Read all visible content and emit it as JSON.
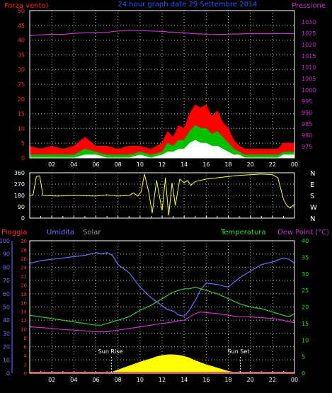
{
  "header": {
    "left_label": "Forza vento)",
    "center_title": "24 hour graph date 29 Settembre 2014",
    "right_label": "Pressione"
  },
  "lower_header": {
    "rain_label": "Pioggia",
    "humidity_label": "Umidita",
    "solar_label": "Solar",
    "temperature_label": "Temperatura",
    "dewpoint_label": "Dew Point (°C)"
  },
  "annotations": {
    "sun_rise": "Sun Rise",
    "sun_set": "Sun Set"
  },
  "colors": {
    "wind_gust": "#ff0000",
    "wind_speed": "#00c000",
    "wind_avg": "#ffffff",
    "pressure": "#cc33cc",
    "direction": "#ffff33",
    "humidity": "#7070ff",
    "temperature": "#33cc33",
    "dewpoint": "#cc33cc",
    "solar": "#ffff00",
    "rain": "#ff2020",
    "axis": "#ffffff",
    "grid": "#bbbbbb"
  },
  "chart_data": [
    {
      "type": "area",
      "id": "wind-pressure",
      "x": [
        0,
        1,
        2,
        3,
        4,
        5,
        6,
        7,
        8,
        9,
        10,
        11,
        12,
        12.5,
        13,
        13.5,
        14,
        14.5,
        15,
        15.5,
        16,
        16.5,
        17,
        17.5,
        18,
        18.5,
        19,
        19.5,
        20,
        21,
        22,
        22.5,
        23,
        24
      ],
      "xticks": [
        "02",
        "04",
        "06",
        "08",
        "10",
        "12",
        "14",
        "16",
        "18",
        "20",
        "22",
        "00"
      ],
      "y_left_range": [
        0,
        50
      ],
      "y_left_ticks": [
        0,
        5,
        10,
        15,
        20,
        25,
        30,
        35,
        40,
        45,
        50
      ],
      "y_right_range": [
        970,
        1035
      ],
      "y_right_ticks": [
        975,
        980,
        985,
        990,
        995,
        1000,
        1005,
        1010,
        1015,
        1020,
        1025,
        1030
      ],
      "series": [
        {
          "values": [
            4,
            3,
            4,
            3,
            4,
            7,
            4,
            4,
            3,
            4,
            4,
            3,
            5,
            9,
            7,
            11,
            10,
            15,
            18,
            17,
            18,
            14,
            16,
            12,
            10,
            6,
            4,
            3,
            3,
            3,
            3,
            3,
            5,
            5
          ]
        },
        {
          "values": [
            1,
            1,
            1,
            1,
            1,
            3,
            2,
            1,
            1,
            1,
            2,
            1,
            2,
            5,
            4,
            6,
            6,
            9,
            11,
            10,
            10,
            8,
            9,
            7,
            5,
            3,
            2,
            1,
            1,
            1,
            1,
            1,
            2,
            2
          ]
        },
        {
          "values": [
            0,
            0,
            0,
            0,
            0,
            1,
            1,
            0,
            0,
            0,
            1,
            0,
            1,
            2,
            2,
            3,
            3,
            5,
            6,
            5,
            5,
            4,
            4,
            3,
            2,
            1,
            1,
            0,
            0,
            0,
            0,
            0,
            1,
            1
          ]
        },
        {
          "values": [
            1024,
            1024.3,
            1024.6,
            1024.5,
            1025,
            1025.2,
            1025.3,
            1025.4,
            1026,
            1026.3,
            1026.2,
            1026,
            1025.8,
            1025.6,
            1025.5,
            1025.4,
            1025.2,
            1025,
            1024.8,
            1024.7,
            1024.6,
            1024.6,
            1024.5,
            1024.5,
            1024.6,
            1024.7,
            1024.7,
            1024.8,
            1024.8,
            1024.8,
            1024.8,
            1024.9,
            1024.9,
            1024.8
          ]
        }
      ]
    },
    {
      "type": "line",
      "id": "wind-direction",
      "x": [
        0,
        0.3,
        0.6,
        0.9,
        1.2,
        2.5,
        4,
        6,
        7,
        8,
        9,
        9.4,
        9.8,
        10.1,
        10.4,
        10.8,
        11.1,
        11.5,
        12,
        12.3,
        12.6,
        12.9,
        13.2,
        13.6,
        14,
        14.3,
        14.6,
        15,
        16,
        17,
        18,
        19,
        20,
        21,
        22,
        22.5,
        23,
        23.3,
        23.6,
        24
      ],
      "xticks": [
        "02",
        "04",
        "06",
        "08",
        "10",
        "12",
        "14",
        "16",
        "18",
        "20",
        "22",
        "00"
      ],
      "y_left_range": [
        0,
        360
      ],
      "y_left_ticks": [
        0,
        90,
        180,
        270,
        360
      ],
      "y_right_ticks": [
        "N",
        "W",
        "S",
        "E",
        "N"
      ],
      "series": [
        {
          "values": [
            180,
            185,
            330,
            335,
            180,
            175,
            180,
            175,
            185,
            175,
            180,
            200,
            175,
            210,
            350,
            200,
            40,
            300,
            60,
            320,
            20,
            280,
            100,
            310,
            280,
            300,
            260,
            290,
            310,
            320,
            330,
            340,
            345,
            350,
            345,
            320,
            150,
            100,
            80,
            110
          ]
        }
      ]
    },
    {
      "type": "line",
      "id": "humidity-temp-solar",
      "x": [
        0,
        1,
        2,
        3,
        4,
        5,
        6,
        6.5,
        7,
        7.5,
        8,
        9,
        10,
        11,
        11.5,
        12,
        12.5,
        13,
        13.5,
        14,
        14.5,
        15,
        15.5,
        16,
        17,
        18,
        19,
        20,
        21,
        22,
        23,
        23.5,
        24
      ],
      "xticks": [
        "02",
        "04",
        "06",
        "08",
        "10",
        "12",
        "14",
        "16",
        "18",
        "20",
        "22",
        "00"
      ],
      "y_left_rain_range": [
        0,
        30
      ],
      "y_left_rain_ticks": [
        0,
        2,
        4,
        6,
        8,
        10,
        12,
        14,
        16,
        18,
        20,
        22,
        24,
        26,
        28,
        30
      ],
      "y_left_humidity_range": [
        0,
        100
      ],
      "y_left_humidity_ticks": [
        0,
        10,
        20,
        30,
        40,
        50,
        60,
        70,
        80,
        90,
        100
      ],
      "y_right_range": [
        0,
        40
      ],
      "y_right_ticks": [
        0,
        5,
        10,
        15,
        20,
        25,
        30,
        35,
        40
      ],
      "sunrise_hour": 7.4,
      "sunset_hour": 19.1,
      "series": [
        {
          "values": [
            83,
            85,
            86,
            87,
            88,
            89,
            91,
            90,
            91,
            89,
            82,
            76,
            65,
            57,
            54,
            51,
            48,
            47,
            44,
            43,
            48,
            55,
            63,
            68,
            67,
            65,
            72,
            77,
            82,
            84,
            87,
            86,
            83
          ]
        },
        {
          "values": [
            17.5,
            17,
            16.5,
            16,
            15.5,
            15,
            14.5,
            14.5,
            15,
            15.5,
            16,
            17,
            19,
            20.5,
            21.5,
            22.5,
            23.5,
            24.5,
            25,
            25.5,
            25.5,
            26,
            25.5,
            25,
            24,
            22.5,
            21,
            20,
            19.5,
            18.5,
            17.5,
            17,
            18
          ]
        },
        {
          "values": [
            14,
            13.8,
            13.5,
            13.2,
            13,
            12.8,
            12.5,
            12.5,
            12.5,
            12.8,
            13,
            13.5,
            14,
            14.5,
            14.8,
            15,
            15.2,
            15.5,
            15.8,
            16,
            17,
            18,
            18.5,
            18.3,
            18,
            17.5,
            17,
            17,
            16.8,
            16.5,
            16,
            15.5,
            15.3
          ]
        },
        {
          "values": [
            0,
            0,
            0,
            0,
            0,
            0,
            0,
            0,
            0,
            10,
            25,
            55,
            85,
            110,
            125,
            135,
            140,
            140,
            136,
            128,
            115,
            95,
            80,
            65,
            40,
            15,
            0,
            0,
            0,
            0,
            0,
            0,
            0
          ]
        }
      ]
    }
  ]
}
